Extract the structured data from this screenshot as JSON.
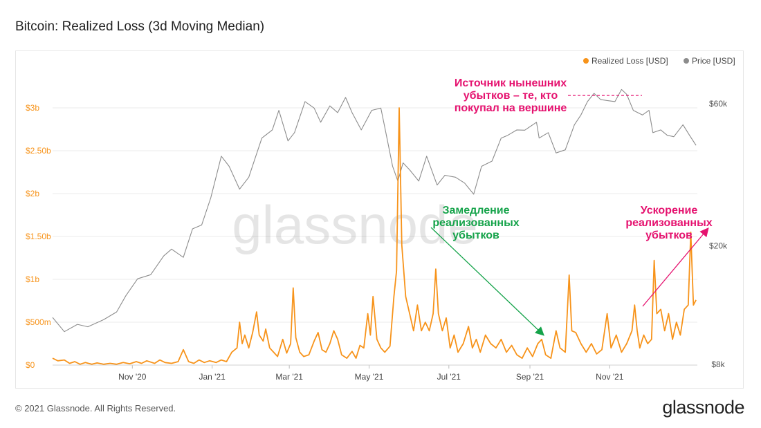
{
  "chart_title": "Bitcoin: Realized Loss (3d Moving Median)",
  "footer": {
    "copyright": "© 2021 Glassnode. All Rights Reserved.",
    "logo": "glassnode"
  },
  "watermark": "glassnode",
  "colors": {
    "loss": "#f7931a",
    "price": "#8c8c8c",
    "grid": "#ebebeb",
    "pink": "#e5126f",
    "green": "#15a34a"
  },
  "annotations": {
    "top": [
      "Источник нынешних",
      "убытков – те, кто",
      "покупал на вершине"
    ],
    "middle": [
      "Замедление",
      "реализованных",
      "убытков"
    ],
    "right": [
      "Ускорение",
      "реализованных",
      "убытков"
    ]
  },
  "chart_data": {
    "type": "line",
    "title": "Bitcoin: Realized Loss (3d Moving Median)",
    "legend": {
      "position": "top-right",
      "entries": [
        "Realized Loss [USD]",
        "Price [USD]"
      ]
    },
    "x_ticks": [
      "Nov '20",
      "Jan '21",
      "Mar '21",
      "May '21",
      "Jul '21",
      "Sep '21",
      "Nov '21"
    ],
    "y_left": {
      "label": "",
      "ticks": [
        "$0",
        "$500m",
        "$1b",
        "$1.50b",
        "$2b",
        "$2.50b",
        "$3b"
      ],
      "range": [
        0,
        3000000000
      ]
    },
    "y_right": {
      "label": "",
      "scale": "log",
      "ticks": [
        "$8k",
        "$20k",
        "$60k"
      ],
      "range": [
        8000,
        120000
      ]
    },
    "grid": true,
    "series": [
      {
        "name": "Realized Loss [USD]",
        "axis": "left",
        "points": [
          [
            "2020-09-01",
            80000000.0
          ],
          [
            "2020-09-05",
            50000000.0
          ],
          [
            "2020-09-10",
            60000000.0
          ],
          [
            "2020-09-14",
            20000000.0
          ],
          [
            "2020-09-18",
            40000000.0
          ],
          [
            "2020-09-22",
            10000000.0
          ],
          [
            "2020-09-26",
            30000000.0
          ],
          [
            "2020-10-01",
            10000000.0
          ],
          [
            "2020-10-05",
            25000000.0
          ],
          [
            "2020-10-10",
            10000000.0
          ],
          [
            "2020-10-15",
            20000000.0
          ],
          [
            "2020-10-20",
            10000000.0
          ],
          [
            "2020-10-25",
            30000000.0
          ],
          [
            "2020-10-30",
            15000000.0
          ],
          [
            "2020-11-04",
            40000000.0
          ],
          [
            "2020-11-08",
            20000000.0
          ],
          [
            "2020-11-12",
            50000000.0
          ],
          [
            "2020-11-18",
            20000000.0
          ],
          [
            "2020-11-22",
            60000000.0
          ],
          [
            "2020-11-26",
            30000000.0
          ],
          [
            "2020-12-01",
            20000000.0
          ],
          [
            "2020-12-06",
            40000000.0
          ],
          [
            "2020-12-10",
            180000000.0
          ],
          [
            "2020-12-14",
            40000000.0
          ],
          [
            "2020-12-18",
            20000000.0
          ],
          [
            "2020-12-22",
            60000000.0
          ],
          [
            "2020-12-26",
            30000000.0
          ],
          [
            "2020-12-30",
            50000000.0
          ],
          [
            "2021-01-04",
            30000000.0
          ],
          [
            "2021-01-08",
            60000000.0
          ],
          [
            "2021-01-12",
            40000000.0
          ],
          [
            "2021-01-16",
            150000000.0
          ],
          [
            "2021-01-20",
            200000000.0
          ],
          [
            "2021-01-22",
            500000000.0
          ],
          [
            "2021-01-24",
            250000000.0
          ],
          [
            "2021-01-26",
            350000000.0
          ],
          [
            "2021-01-29",
            200000000.0
          ],
          [
            "2021-02-01",
            380000000.0
          ],
          [
            "2021-02-04",
            620000000.0
          ],
          [
            "2021-02-06",
            350000000.0
          ],
          [
            "2021-02-09",
            280000000.0
          ],
          [
            "2021-02-11",
            420000000.0
          ],
          [
            "2021-02-14",
            200000000.0
          ],
          [
            "2021-02-17",
            150000000.0
          ],
          [
            "2021-02-20",
            100000000.0
          ],
          [
            "2021-02-24",
            300000000.0
          ],
          [
            "2021-02-27",
            140000000.0
          ],
          [
            "2021-03-02",
            250000000.0
          ],
          [
            "2021-03-04",
            900000000.0
          ],
          [
            "2021-03-06",
            320000000.0
          ],
          [
            "2021-03-09",
            150000000.0
          ],
          [
            "2021-03-12",
            100000000.0
          ],
          [
            "2021-03-16",
            120000000.0
          ],
          [
            "2021-03-20",
            280000000.0
          ],
          [
            "2021-03-23",
            380000000.0
          ],
          [
            "2021-03-26",
            180000000.0
          ],
          [
            "2021-03-29",
            150000000.0
          ],
          [
            "2021-04-01",
            250000000.0
          ],
          [
            "2021-04-04",
            400000000.0
          ],
          [
            "2021-04-07",
            300000000.0
          ],
          [
            "2021-04-10",
            120000000.0
          ],
          [
            "2021-04-14",
            80000000.0
          ],
          [
            "2021-04-18",
            160000000.0
          ],
          [
            "2021-04-21",
            80000000.0
          ],
          [
            "2021-04-24",
            230000000.0
          ],
          [
            "2021-04-27",
            200000000.0
          ],
          [
            "2021-04-30",
            600000000.0
          ],
          [
            "2021-05-02",
            350000000.0
          ],
          [
            "2021-05-04",
            800000000.0
          ],
          [
            "2021-05-07",
            300000000.0
          ],
          [
            "2021-05-10",
            200000000.0
          ],
          [
            "2021-05-13",
            150000000.0
          ],
          [
            "2021-05-17",
            220000000.0
          ],
          [
            "2021-05-20",
            800000000.0
          ],
          [
            "2021-05-22",
            1100000000.0
          ],
          [
            "2021-05-24",
            3000000000.0
          ],
          [
            "2021-05-26",
            1400000000.0
          ],
          [
            "2021-05-29",
            800000000.0
          ],
          [
            "2021-06-01",
            600000000.0
          ],
          [
            "2021-06-04",
            400000000.0
          ],
          [
            "2021-06-07",
            700000000.0
          ],
          [
            "2021-06-10",
            400000000.0
          ],
          [
            "2021-06-13",
            500000000.0
          ],
          [
            "2021-06-16",
            400000000.0
          ],
          [
            "2021-06-19",
            600000000.0
          ],
          [
            "2021-06-21",
            1120000000.0
          ],
          [
            "2021-06-23",
            600000000.0
          ],
          [
            "2021-06-26",
            400000000.0
          ],
          [
            "2021-06-29",
            550000000.0
          ],
          [
            "2021-07-02",
            200000000.0
          ],
          [
            "2021-07-05",
            350000000.0
          ],
          [
            "2021-07-08",
            150000000.0
          ],
          [
            "2021-07-12",
            250000000.0
          ],
          [
            "2021-07-16",
            450000000.0
          ],
          [
            "2021-07-19",
            200000000.0
          ],
          [
            "2021-07-22",
            300000000.0
          ],
          [
            "2021-07-25",
            150000000.0
          ],
          [
            "2021-07-29",
            350000000.0
          ],
          [
            "2021-08-02",
            250000000.0
          ],
          [
            "2021-08-06",
            200000000.0
          ],
          [
            "2021-08-10",
            300000000.0
          ],
          [
            "2021-08-14",
            150000000.0
          ],
          [
            "2021-08-18",
            230000000.0
          ],
          [
            "2021-08-22",
            120000000.0
          ],
          [
            "2021-08-26",
            80000000.0
          ],
          [
            "2021-08-30",
            200000000.0
          ],
          [
            "2021-09-03",
            100000000.0
          ],
          [
            "2021-09-07",
            250000000.0
          ],
          [
            "2021-09-10",
            300000000.0
          ],
          [
            "2021-09-13",
            120000000.0
          ],
          [
            "2021-09-17",
            80000000.0
          ],
          [
            "2021-09-21",
            400000000.0
          ],
          [
            "2021-09-24",
            200000000.0
          ],
          [
            "2021-09-28",
            150000000.0
          ],
          [
            "2021-10-01",
            1050000000.0
          ],
          [
            "2021-10-03",
            400000000.0
          ],
          [
            "2021-10-06",
            380000000.0
          ],
          [
            "2021-10-10",
            250000000.0
          ],
          [
            "2021-10-14",
            150000000.0
          ],
          [
            "2021-10-18",
            250000000.0
          ],
          [
            "2021-10-22",
            130000000.0
          ],
          [
            "2021-10-26",
            180000000.0
          ],
          [
            "2021-10-30",
            600000000.0
          ],
          [
            "2021-11-02",
            200000000.0
          ],
          [
            "2021-11-06",
            350000000.0
          ],
          [
            "2021-11-10",
            150000000.0
          ],
          [
            "2021-11-14",
            250000000.0
          ],
          [
            "2021-11-18",
            400000000.0
          ],
          [
            "2021-11-20",
            700000000.0
          ],
          [
            "2021-11-22",
            400000000.0
          ],
          [
            "2021-11-24",
            200000000.0
          ],
          [
            "2021-11-27",
            350000000.0
          ],
          [
            "2021-11-30",
            250000000.0
          ],
          [
            "2021-12-03",
            300000000.0
          ],
          [
            "2021-12-05",
            1220000000.0
          ],
          [
            "2021-12-07",
            600000000.0
          ],
          [
            "2021-12-10",
            650000000.0
          ],
          [
            "2021-12-13",
            400000000.0
          ],
          [
            "2021-12-16",
            600000000.0
          ],
          [
            "2021-12-19",
            300000000.0
          ],
          [
            "2021-12-22",
            500000000.0
          ],
          [
            "2021-12-25",
            350000000.0
          ],
          [
            "2021-12-28",
            650000000.0
          ],
          [
            "2021-12-31",
            700000000.0
          ],
          [
            "2022-01-02",
            1550000000.0
          ],
          [
            "2022-01-04",
            700000000.0
          ],
          [
            "2022-01-06",
            760000000.0
          ]
        ]
      },
      {
        "name": "Price [USD]",
        "axis": "right",
        "points": [
          [
            "2020-09-01",
            11500
          ],
          [
            "2020-09-10",
            10300
          ],
          [
            "2020-09-20",
            10900
          ],
          [
            "2020-09-28",
            10700
          ],
          [
            "2020-10-10",
            11300
          ],
          [
            "2020-10-20",
            12000
          ],
          [
            "2020-10-27",
            13600
          ],
          [
            "2020-11-05",
            15500
          ],
          [
            "2020-11-15",
            16000
          ],
          [
            "2020-11-25",
            18500
          ],
          [
            "2020-12-01",
            19500
          ],
          [
            "2020-12-10",
            18300
          ],
          [
            "2020-12-17",
            22800
          ],
          [
            "2020-12-24",
            23500
          ],
          [
            "2020-12-31",
            29000
          ],
          [
            "2021-01-08",
            40000
          ],
          [
            "2021-01-14",
            37000
          ],
          [
            "2021-01-22",
            31000
          ],
          [
            "2021-01-29",
            34000
          ],
          [
            "2021-02-08",
            46000
          ],
          [
            "2021-02-16",
            49000
          ],
          [
            "2021-02-21",
            57000
          ],
          [
            "2021-02-28",
            45000
          ],
          [
            "2021-03-05",
            48000
          ],
          [
            "2021-03-13",
            61000
          ],
          [
            "2021-03-20",
            58000
          ],
          [
            "2021-03-25",
            52000
          ],
          [
            "2021-04-01",
            59000
          ],
          [
            "2021-04-07",
            56000
          ],
          [
            "2021-04-13",
            63000
          ],
          [
            "2021-04-18",
            56000
          ],
          [
            "2021-04-25",
            49000
          ],
          [
            "2021-05-03",
            57000
          ],
          [
            "2021-05-10",
            58000
          ],
          [
            "2021-05-13",
            50000
          ],
          [
            "2021-05-19",
            37000
          ],
          [
            "2021-05-23",
            33000
          ],
          [
            "2021-05-27",
            38000
          ],
          [
            "2021-06-01",
            36000
          ],
          [
            "2021-06-08",
            33000
          ],
          [
            "2021-06-14",
            40000
          ],
          [
            "2021-06-22",
            32000
          ],
          [
            "2021-06-28",
            34500
          ],
          [
            "2021-07-06",
            34000
          ],
          [
            "2021-07-13",
            32500
          ],
          [
            "2021-07-20",
            29800
          ],
          [
            "2021-07-26",
            37000
          ],
          [
            "2021-08-03",
            38500
          ],
          [
            "2021-08-10",
            46000
          ],
          [
            "2021-08-15",
            47000
          ],
          [
            "2021-08-22",
            49000
          ],
          [
            "2021-08-28",
            48900
          ],
          [
            "2021-09-06",
            52000
          ],
          [
            "2021-09-08",
            46000
          ],
          [
            "2021-09-15",
            48000
          ],
          [
            "2021-09-21",
            41000
          ],
          [
            "2021-09-28",
            42000
          ],
          [
            "2021-10-05",
            51000
          ],
          [
            "2021-10-10",
            55000
          ],
          [
            "2021-10-15",
            61000
          ],
          [
            "2021-10-20",
            65000
          ],
          [
            "2021-10-25",
            62000
          ],
          [
            "2021-10-30",
            61500
          ],
          [
            "2021-11-05",
            61000
          ],
          [
            "2021-11-10",
            67000
          ],
          [
            "2021-11-14",
            64500
          ],
          [
            "2021-11-19",
            57000
          ],
          [
            "2021-11-26",
            55000
          ],
          [
            "2021-12-01",
            57000
          ],
          [
            "2021-12-04",
            48000
          ],
          [
            "2021-12-10",
            49000
          ],
          [
            "2021-12-15",
            47000
          ],
          [
            "2021-12-20",
            46500
          ],
          [
            "2021-12-27",
            51000
          ],
          [
            "2022-01-01",
            47000
          ],
          [
            "2022-01-06",
            43500
          ]
        ]
      }
    ]
  }
}
